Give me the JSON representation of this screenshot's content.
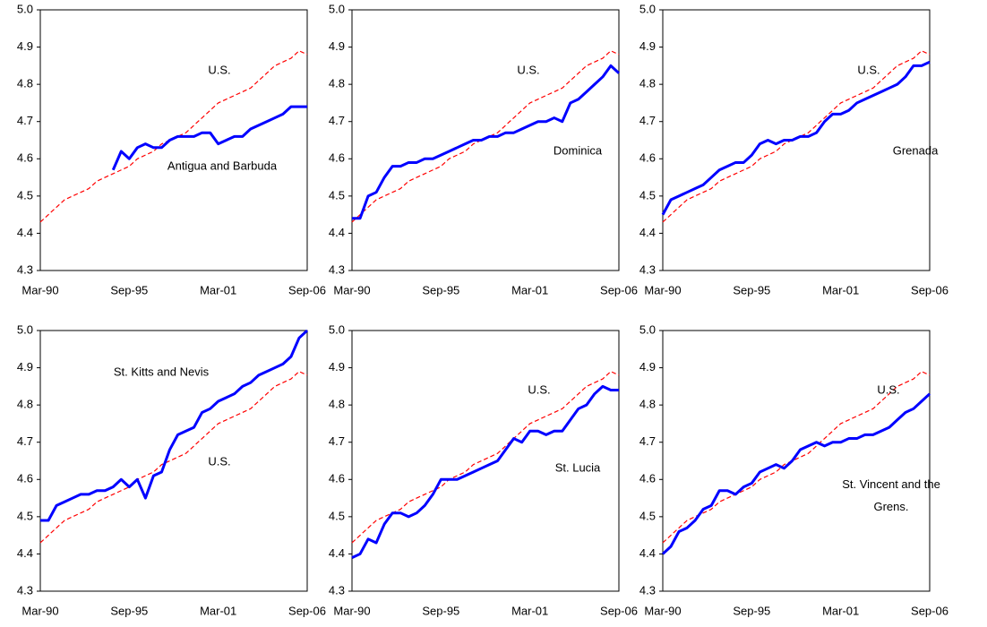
{
  "chart_data": [
    {
      "type": "line",
      "categories": [
        "Mar-90",
        null,
        null,
        null,
        null,
        null,
        null,
        null,
        null,
        null,
        null,
        "Sep-95",
        null,
        null,
        null,
        null,
        null,
        null,
        null,
        null,
        null,
        null,
        "Mar-01",
        null,
        null,
        null,
        null,
        null,
        null,
        null,
        null,
        null,
        null,
        "Sep-06"
      ],
      "ylim": [
        4.3,
        5.0
      ],
      "yticks": [
        4.3,
        4.4,
        4.5,
        4.6,
        4.7,
        4.8,
        4.9,
        {
          "value": 5.0,
          "label": "5.0"
        }
      ],
      "series": [
        {
          "name": "U.S.",
          "color": "#ff0000",
          "line_style": "dashed",
          "values": [
            4.43,
            4.45,
            4.47,
            4.49,
            4.5,
            4.51,
            4.52,
            4.54,
            4.55,
            4.56,
            4.57,
            4.58,
            4.6,
            4.61,
            4.62,
            4.64,
            4.65,
            4.66,
            4.67,
            4.69,
            4.71,
            4.73,
            4.75,
            4.76,
            4.77,
            4.78,
            4.79,
            4.81,
            4.83,
            4.85,
            4.86,
            4.87,
            4.89,
            4.88
          ]
        },
        {
          "name": "Antigua and Barbuda",
          "color": "#0000ff",
          "line_style": "solid",
          "values": [
            null,
            null,
            null,
            null,
            null,
            null,
            null,
            null,
            null,
            4.57,
            4.62,
            4.6,
            4.63,
            4.64,
            4.63,
            4.63,
            4.65,
            4.66,
            4.66,
            4.66,
            4.67,
            4.67,
            4.64,
            4.65,
            4.66,
            4.66,
            4.68,
            4.69,
            4.7,
            4.71,
            4.72,
            4.74,
            4.74,
            4.74
          ]
        }
      ]
    },
    {
      "type": "line",
      "categories": [
        "Mar-90",
        null,
        null,
        null,
        null,
        null,
        null,
        null,
        null,
        null,
        null,
        "Sep-95",
        null,
        null,
        null,
        null,
        null,
        null,
        null,
        null,
        null,
        null,
        "Mar-01",
        null,
        null,
        null,
        null,
        null,
        null,
        null,
        null,
        null,
        null,
        "Sep-06"
      ],
      "ylim": [
        4.3,
        5.0
      ],
      "yticks": [
        4.3,
        4.4,
        4.5,
        4.6,
        4.7,
        4.8,
        4.9,
        {
          "value": 5.0,
          "label": "5.0"
        }
      ],
      "series": [
        {
          "name": "U.S.",
          "color": "#ff0000",
          "line_style": "dashed",
          "values": [
            4.43,
            4.45,
            4.47,
            4.49,
            4.5,
            4.51,
            4.52,
            4.54,
            4.55,
            4.56,
            4.57,
            4.58,
            4.6,
            4.61,
            4.62,
            4.64,
            4.65,
            4.66,
            4.67,
            4.69,
            4.71,
            4.73,
            4.75,
            4.76,
            4.77,
            4.78,
            4.79,
            4.81,
            4.83,
            4.85,
            4.86,
            4.87,
            4.89,
            4.88
          ]
        },
        {
          "name": "Dominica",
          "color": "#0000ff",
          "line_style": "solid",
          "values": [
            4.44,
            4.44,
            4.5,
            4.51,
            4.55,
            4.58,
            4.58,
            4.59,
            4.59,
            4.6,
            4.6,
            4.61,
            4.62,
            4.63,
            4.64,
            4.65,
            4.65,
            4.66,
            4.66,
            4.67,
            4.67,
            4.68,
            4.69,
            4.7,
            4.7,
            4.71,
            4.7,
            4.75,
            4.76,
            4.78,
            4.8,
            4.82,
            4.85,
            4.83
          ]
        }
      ]
    },
    {
      "type": "line",
      "categories": [
        "Mar-90",
        null,
        null,
        null,
        null,
        null,
        null,
        null,
        null,
        null,
        null,
        "Sep-95",
        null,
        null,
        null,
        null,
        null,
        null,
        null,
        null,
        null,
        null,
        "Mar-01",
        null,
        null,
        null,
        null,
        null,
        null,
        null,
        null,
        null,
        null,
        "Sep-06"
      ],
      "ylim": [
        4.3,
        5.0
      ],
      "yticks": [
        4.3,
        4.4,
        4.5,
        4.6,
        4.7,
        4.8,
        4.9,
        {
          "value": 5.0,
          "label": "5.0"
        }
      ],
      "series": [
        {
          "name": "U.S.",
          "color": "#ff0000",
          "line_style": "dashed",
          "values": [
            4.43,
            4.45,
            4.47,
            4.49,
            4.5,
            4.51,
            4.52,
            4.54,
            4.55,
            4.56,
            4.57,
            4.58,
            4.6,
            4.61,
            4.62,
            4.64,
            4.65,
            4.66,
            4.67,
            4.69,
            4.71,
            4.73,
            4.75,
            4.76,
            4.77,
            4.78,
            4.79,
            4.81,
            4.83,
            4.85,
            4.86,
            4.87,
            4.89,
            4.88
          ]
        },
        {
          "name": "Grenada",
          "color": "#0000ff",
          "line_style": "solid",
          "values": [
            4.45,
            4.49,
            4.5,
            4.51,
            4.52,
            4.53,
            4.55,
            4.57,
            4.58,
            4.59,
            4.59,
            4.61,
            4.64,
            4.65,
            4.64,
            4.65,
            4.65,
            4.66,
            4.66,
            4.67,
            4.7,
            4.72,
            4.72,
            4.73,
            4.75,
            4.76,
            4.77,
            4.78,
            4.79,
            4.8,
            4.82,
            4.85,
            4.85,
            4.86
          ]
        }
      ]
    },
    {
      "type": "line",
      "categories": [
        "Mar-90",
        null,
        null,
        null,
        null,
        null,
        null,
        null,
        null,
        null,
        null,
        "Sep-95",
        null,
        null,
        null,
        null,
        null,
        null,
        null,
        null,
        null,
        null,
        "Mar-01",
        null,
        null,
        null,
        null,
        null,
        null,
        null,
        null,
        null,
        null,
        "Sep-06"
      ],
      "ylim": [
        4.3,
        5.0
      ],
      "yticks": [
        4.3,
        4.4,
        4.5,
        4.6,
        4.7,
        4.8,
        4.9,
        {
          "value": 5.0,
          "label": "5.0"
        }
      ],
      "series": [
        {
          "name": "U.S.",
          "color": "#ff0000",
          "line_style": "dashed",
          "values": [
            4.43,
            4.45,
            4.47,
            4.49,
            4.5,
            4.51,
            4.52,
            4.54,
            4.55,
            4.56,
            4.57,
            4.58,
            4.6,
            4.61,
            4.62,
            4.64,
            4.65,
            4.66,
            4.67,
            4.69,
            4.71,
            4.73,
            4.75,
            4.76,
            4.77,
            4.78,
            4.79,
            4.81,
            4.83,
            4.85,
            4.86,
            4.87,
            4.89,
            4.88
          ]
        },
        {
          "name": "St. Kitts and Nevis",
          "color": "#0000ff",
          "line_style": "solid",
          "values": [
            4.49,
            4.49,
            4.53,
            4.54,
            4.55,
            4.56,
            4.56,
            4.57,
            4.57,
            4.58,
            4.6,
            4.58,
            4.6,
            4.55,
            4.61,
            4.62,
            4.68,
            4.72,
            4.73,
            4.74,
            4.78,
            4.79,
            4.81,
            4.82,
            4.83,
            4.85,
            4.86,
            4.88,
            4.89,
            4.9,
            4.91,
            4.93,
            4.98,
            5.0
          ]
        }
      ]
    },
    {
      "type": "line",
      "categories": [
        "Mar-90",
        null,
        null,
        null,
        null,
        null,
        null,
        null,
        null,
        null,
        null,
        "Sep-95",
        null,
        null,
        null,
        null,
        null,
        null,
        null,
        null,
        null,
        null,
        "Mar-01",
        null,
        null,
        null,
        null,
        null,
        null,
        null,
        null,
        null,
        null,
        "Sep-06"
      ],
      "ylim": [
        4.3,
        5.0
      ],
      "yticks": [
        4.3,
        4.4,
        4.5,
        4.6,
        4.7,
        4.8,
        4.9,
        {
          "value": 5.0,
          "label": "5.0"
        }
      ],
      "series": [
        {
          "name": "U.S.",
          "color": "#ff0000",
          "line_style": "dashed",
          "values": [
            4.43,
            4.45,
            4.47,
            4.49,
            4.5,
            4.51,
            4.52,
            4.54,
            4.55,
            4.56,
            4.57,
            4.58,
            4.6,
            4.61,
            4.62,
            4.64,
            4.65,
            4.66,
            4.67,
            4.69,
            4.71,
            4.73,
            4.75,
            4.76,
            4.77,
            4.78,
            4.79,
            4.81,
            4.83,
            4.85,
            4.86,
            4.87,
            4.89,
            4.88
          ]
        },
        {
          "name": "St. Lucia",
          "color": "#0000ff",
          "line_style": "solid",
          "values": [
            4.39,
            4.4,
            4.44,
            4.43,
            4.48,
            4.51,
            4.51,
            4.5,
            4.51,
            4.53,
            4.56,
            4.6,
            4.6,
            4.6,
            4.61,
            4.62,
            4.63,
            4.64,
            4.65,
            4.68,
            4.71,
            4.7,
            4.73,
            4.73,
            4.72,
            4.73,
            4.73,
            4.76,
            4.79,
            4.8,
            4.83,
            4.85,
            4.84,
            4.84
          ]
        }
      ]
    },
    {
      "type": "line",
      "categories": [
        "Mar-90",
        null,
        null,
        null,
        null,
        null,
        null,
        null,
        null,
        null,
        null,
        "Sep-95",
        null,
        null,
        null,
        null,
        null,
        null,
        null,
        null,
        null,
        null,
        "Mar-01",
        null,
        null,
        null,
        null,
        null,
        null,
        null,
        null,
        null,
        null,
        "Sep-06"
      ],
      "ylim": [
        4.3,
        5.0
      ],
      "yticks": [
        4.3,
        4.4,
        4.5,
        4.6,
        4.7,
        4.8,
        4.9,
        {
          "value": 5.0,
          "label": "5.0"
        }
      ],
      "series": [
        {
          "name": "U.S.",
          "color": "#ff0000",
          "line_style": "dashed",
          "values": [
            4.43,
            4.45,
            4.47,
            4.49,
            4.5,
            4.51,
            4.52,
            4.54,
            4.55,
            4.56,
            4.57,
            4.58,
            4.6,
            4.61,
            4.62,
            4.64,
            4.65,
            4.66,
            4.67,
            4.69,
            4.71,
            4.73,
            4.75,
            4.76,
            4.77,
            4.78,
            4.79,
            4.81,
            4.83,
            4.85,
            4.86,
            4.87,
            4.89,
            4.88
          ]
        },
        {
          "name": "St. Vincent and the Grens.",
          "color": "#0000ff",
          "line_style": "solid",
          "values": [
            4.4,
            4.42,
            4.46,
            4.47,
            4.49,
            4.52,
            4.53,
            4.57,
            4.57,
            4.56,
            4.58,
            4.59,
            4.62,
            4.63,
            4.64,
            4.63,
            4.65,
            4.68,
            4.69,
            4.7,
            4.69,
            4.7,
            4.7,
            4.71,
            4.71,
            4.72,
            4.72,
            4.73,
            4.74,
            4.76,
            4.78,
            4.79,
            4.81,
            4.83
          ]
        }
      ]
    }
  ]
}
